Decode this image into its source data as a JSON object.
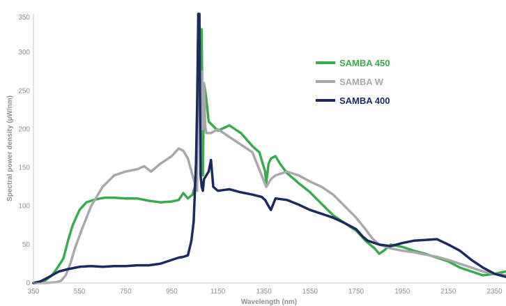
{
  "chart_data": {
    "type": "line",
    "title": "",
    "xlabel": "Wavelength (nm)",
    "ylabel": "Spectral power density (µW/nm)",
    "xlim": [
      350,
      2400
    ],
    "ylim": [
      0,
      350
    ],
    "xticks": [
      350,
      550,
      750,
      950,
      1150,
      1350,
      1550,
      1750,
      1950,
      2150,
      2350
    ],
    "yticks": [
      0,
      50,
      100,
      150,
      200,
      250,
      300,
      350
    ],
    "grid": false,
    "legend_position": "top-right",
    "series": [
      {
        "name": "SAMBA 450",
        "color": "#3aaa4e",
        "x": [
          350,
          400,
          430,
          450,
          480,
          500,
          520,
          550,
          580,
          610,
          640,
          660,
          700,
          750,
          800,
          850,
          900,
          950,
          980,
          1000,
          1020,
          1040,
          1050,
          1060,
          1065,
          1070,
          1075,
          1080,
          1085,
          1090,
          1100,
          1110,
          1150,
          1200,
          1250,
          1300,
          1330,
          1355,
          1360,
          1370,
          1380,
          1400,
          1420,
          1450,
          1500,
          1550,
          1600,
          1650,
          1700,
          1750,
          1770,
          1790,
          1810,
          1830,
          1850,
          1870,
          1900,
          1950,
          2000,
          2050,
          2100,
          2150,
          2200,
          2250,
          2300,
          2350,
          2400
        ],
        "y": [
          0,
          3,
          10,
          18,
          32,
          55,
          75,
          95,
          105,
          108,
          110,
          111,
          111,
          110,
          110,
          107,
          105,
          106,
          108,
          117,
          110,
          115,
          125,
          160,
          350,
          340,
          305,
          330,
          140,
          260,
          240,
          210,
          198,
          205,
          195,
          178,
          170,
          145,
          130,
          155,
          162,
          165,
          155,
          143,
          130,
          118,
          103,
          88,
          78,
          68,
          62,
          55,
          50,
          45,
          38,
          42,
          50,
          47,
          42,
          38,
          33,
          28,
          20,
          15,
          10,
          12,
          15
        ]
      },
      {
        "name": "SAMBA W",
        "color": "#a6a8ab",
        "x": [
          350,
          400,
          450,
          470,
          490,
          510,
          530,
          560,
          600,
          650,
          700,
          750,
          800,
          830,
          860,
          900,
          950,
          980,
          1000,
          1020,
          1040,
          1055,
          1060,
          1065,
          1070,
          1075,
          1080,
          1085,
          1090,
          1095,
          1100,
          1120,
          1150,
          1200,
          1250,
          1300,
          1340,
          1360,
          1380,
          1400,
          1450,
          1500,
          1550,
          1600,
          1650,
          1700,
          1750,
          1790,
          1820,
          1850,
          1880,
          1900,
          1950,
          2000,
          2050,
          2100,
          2150,
          2200,
          2250,
          2300,
          2350,
          2400
        ],
        "y": [
          0,
          0,
          1,
          3,
          10,
          25,
          45,
          70,
          100,
          125,
          140,
          145,
          148,
          152,
          145,
          155,
          165,
          175,
          172,
          162,
          140,
          125,
          120,
          350,
          350,
          200,
          275,
          200,
          260,
          205,
          195,
          195,
          200,
          190,
          180,
          170,
          140,
          125,
          135,
          140,
          145,
          140,
          132,
          125,
          115,
          100,
          85,
          70,
          58,
          50,
          47,
          45,
          42,
          40,
          37,
          34,
          30,
          25,
          20,
          15,
          12,
          10
        ]
      },
      {
        "name": "SAMBA 400",
        "color": "#1c2a5e",
        "x": [
          350,
          380,
          400,
          430,
          460,
          500,
          550,
          600,
          650,
          700,
          750,
          800,
          850,
          900,
          930,
          950,
          980,
          1000,
          1020,
          1035,
          1045,
          1055,
          1060,
          1065,
          1070,
          1075,
          1080,
          1085,
          1090,
          1100,
          1110,
          1120,
          1130,
          1150,
          1200,
          1250,
          1300,
          1340,
          1355,
          1370,
          1380,
          1400,
          1450,
          1500,
          1550,
          1600,
          1650,
          1700,
          1750,
          1780,
          1800,
          1850,
          1900,
          1950,
          2000,
          2050,
          2100,
          2150,
          2200,
          2250,
          2300,
          2350,
          2400
        ],
        "y": [
          0,
          2,
          5,
          10,
          15,
          18,
          21,
          22,
          21,
          22,
          22,
          23,
          23,
          25,
          28,
          30,
          33,
          34,
          36,
          55,
          80,
          155,
          230,
          350,
          350,
          140,
          125,
          120,
          135,
          140,
          145,
          160,
          125,
          120,
          122,
          118,
          115,
          112,
          108,
          100,
          95,
          110,
          108,
          102,
          95,
          90,
          85,
          78,
          70,
          60,
          55,
          50,
          48,
          52,
          55,
          56,
          57,
          50,
          42,
          30,
          20,
          12,
          8
        ]
      }
    ]
  }
}
